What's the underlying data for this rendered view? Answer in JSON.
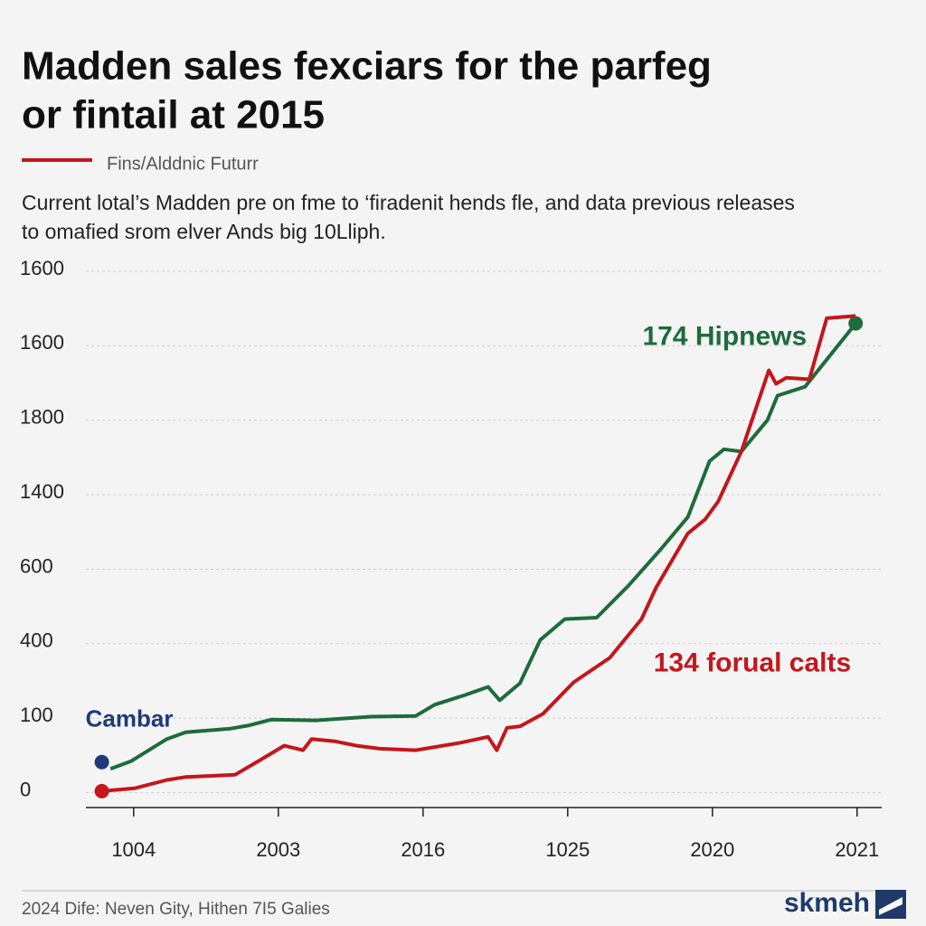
{
  "chart_data": {
    "type": "line",
    "title": [
      "Madden sales fexciars for the parfeg",
      "or fintail at 2015"
    ],
    "subtitle": "Fins/Alddnic Futurr",
    "description": [
      "Current lotal’s Madden pre on fme to ‘firadenit hends fle, and data previous releases",
      "to  omafied srom elver Ands big 10Lliph."
    ],
    "source": "2024 Dife: Neven Gity, Hithen 7I5 Galies",
    "logo": "skmeh",
    "xlim": [
      -0.33,
      5.17
    ],
    "xticks": [
      {
        "value": 0,
        "label": "1004"
      },
      {
        "value": 1,
        "label": "2003"
      },
      {
        "value": 2,
        "label": "2016"
      },
      {
        "value": 3,
        "label": "1025"
      },
      {
        "value": 4,
        "label": "2020"
      },
      {
        "value": 5,
        "label": "2021"
      }
    ],
    "ylim": [
      -0.2,
      7
    ],
    "yticks": [
      {
        "value": 0,
        "label": "0"
      },
      {
        "value": 1,
        "label": "100"
      },
      {
        "value": 2,
        "label": "400"
      },
      {
        "value": 3,
        "label": "600"
      },
      {
        "value": 4,
        "label": "1400"
      },
      {
        "value": 5,
        "label": "1800"
      },
      {
        "value": 6,
        "label": "1600"
      },
      {
        "value": 7,
        "label": "1600"
      }
    ],
    "grid": true,
    "series": [
      {
        "name": "174 Hipnews",
        "color": "#1e6b3c",
        "marker": "end",
        "x": [
          -0.16,
          -0.02,
          0.23,
          0.36,
          0.67,
          0.79,
          0.95,
          1.26,
          1.64,
          1.95,
          2.08,
          2.29,
          2.45,
          2.53,
          2.67,
          2.81,
          2.98,
          3.2,
          3.42,
          3.64,
          3.83,
          3.98,
          4.08,
          4.2,
          4.38,
          4.45,
          4.64,
          4.99
        ],
        "values": [
          0.32,
          0.42,
          0.72,
          0.81,
          0.86,
          0.9,
          0.98,
          0.97,
          1.02,
          1.03,
          1.18,
          1.31,
          1.42,
          1.24,
          1.47,
          2.05,
          2.33,
          2.35,
          2.78,
          3.26,
          3.7,
          4.45,
          4.61,
          4.58,
          5.0,
          5.33,
          5.45,
          6.3
        ]
      },
      {
        "name": "134 forual calts",
        "color": "#c4161c",
        "marker": "start",
        "x": [
          -0.22,
          0.01,
          0.23,
          0.36,
          0.7,
          0.86,
          1.04,
          1.17,
          1.23,
          1.39,
          1.54,
          1.7,
          1.95,
          2.26,
          2.45,
          2.51,
          2.58,
          2.67,
          2.83,
          3.04,
          3.29,
          3.51,
          3.61,
          3.83,
          3.95,
          4.04,
          4.2,
          4.39,
          4.44,
          4.51,
          4.67,
          4.79,
          4.99
        ],
        "values": [
          0.02,
          0.06,
          0.17,
          0.21,
          0.24,
          0.42,
          0.63,
          0.57,
          0.72,
          0.69,
          0.63,
          0.59,
          0.57,
          0.67,
          0.75,
          0.57,
          0.87,
          0.89,
          1.06,
          1.48,
          1.81,
          2.33,
          2.75,
          3.48,
          3.67,
          3.91,
          4.58,
          5.67,
          5.49,
          5.57,
          5.55,
          6.37,
          6.4
        ]
      }
    ],
    "annotations": [
      {
        "text": "Cambar",
        "x": -0.22,
        "y": 0.41,
        "color": "#1f3a7a"
      }
    ]
  }
}
